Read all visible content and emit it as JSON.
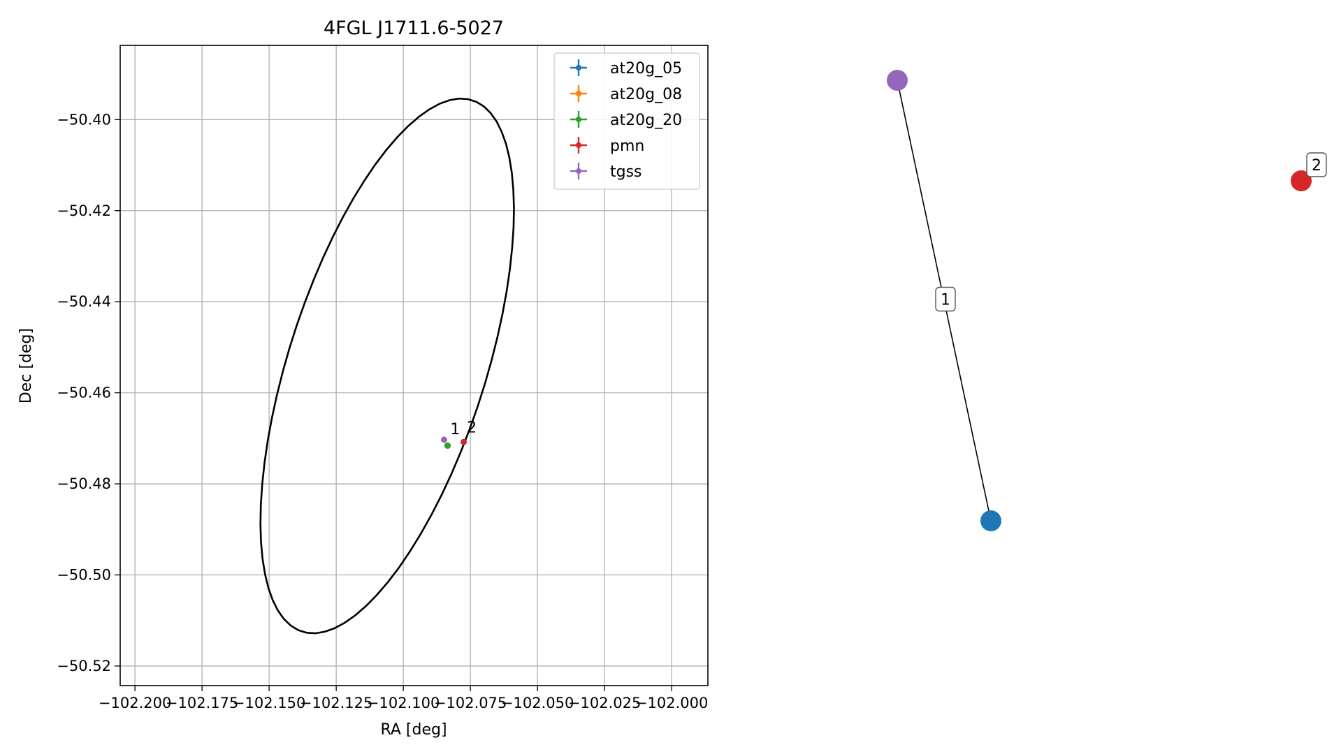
{
  "chart_data": [
    {
      "type": "scatter",
      "title": "4FGL J1711.6-5027",
      "xlabel": "RA [deg]",
      "ylabel": "Dec [deg]",
      "xlim": [
        -102.2055,
        -101.9865
      ],
      "ylim": [
        -50.5243,
        -50.3837
      ],
      "x_ticks": [
        -102.2,
        -102.175,
        -102.15,
        -102.125,
        -102.1,
        -102.075,
        -102.05,
        -102.025,
        -102.0
      ],
      "x_tick_labels": [
        "−102.200",
        "−102.175",
        "−102.150",
        "−102.125",
        "−102.100",
        "−102.075",
        "−102.050",
        "−102.025",
        "−102.000"
      ],
      "y_ticks": [
        -50.4,
        -50.42,
        -50.44,
        -50.46,
        -50.48,
        -50.5,
        -50.52
      ],
      "y_tick_labels": [
        "−50.40",
        "−50.42",
        "−50.44",
        "−50.46",
        "−50.48",
        "−50.50",
        "−50.52"
      ],
      "grid": true,
      "legend_position": "top-right",
      "ellipse": {
        "center": [
          -102.106,
          -50.4541
        ],
        "semi_axis_a": 0.0676,
        "semi_axis_b": 0.0333,
        "rotation_deg": 55.3,
        "color": "#000000"
      },
      "series": [
        {
          "name": "at20g_05",
          "color": "#1f77b4",
          "points": [
            {
              "x": -102.0835,
              "y": -50.4716
            }
          ]
        },
        {
          "name": "at20g_08",
          "color": "#ff7f0e",
          "points": [
            {
              "x": -102.0835,
              "y": -50.4716
            }
          ]
        },
        {
          "name": "at20g_20",
          "color": "#2ca02c",
          "points": [
            {
              "x": -102.0835,
              "y": -50.4716
            }
          ]
        },
        {
          "name": "pmn",
          "color": "#d62728",
          "points": [
            {
              "x": -102.0775,
              "y": -50.4708
            }
          ]
        },
        {
          "name": "tgss",
          "color": "#9467bd",
          "points": [
            {
              "x": -102.0848,
              "y": -50.4703
            }
          ]
        }
      ],
      "annotations": [
        {
          "text": "1",
          "x": -102.0825,
          "y": -50.4691
        },
        {
          "text": "2",
          "x": -102.0763,
          "y": -50.4687
        }
      ]
    },
    {
      "type": "graph",
      "nodes": [
        {
          "id": "tgss",
          "color": "#9467bd"
        },
        {
          "id": "at20g",
          "color": "#1f77b4"
        },
        {
          "id": "pmn",
          "color": "#d62728"
        }
      ],
      "edges": [
        {
          "source": "tgss",
          "target": "at20g",
          "label": "1"
        }
      ],
      "node_labels": [
        {
          "node": "pmn",
          "label": "2"
        }
      ]
    }
  ]
}
